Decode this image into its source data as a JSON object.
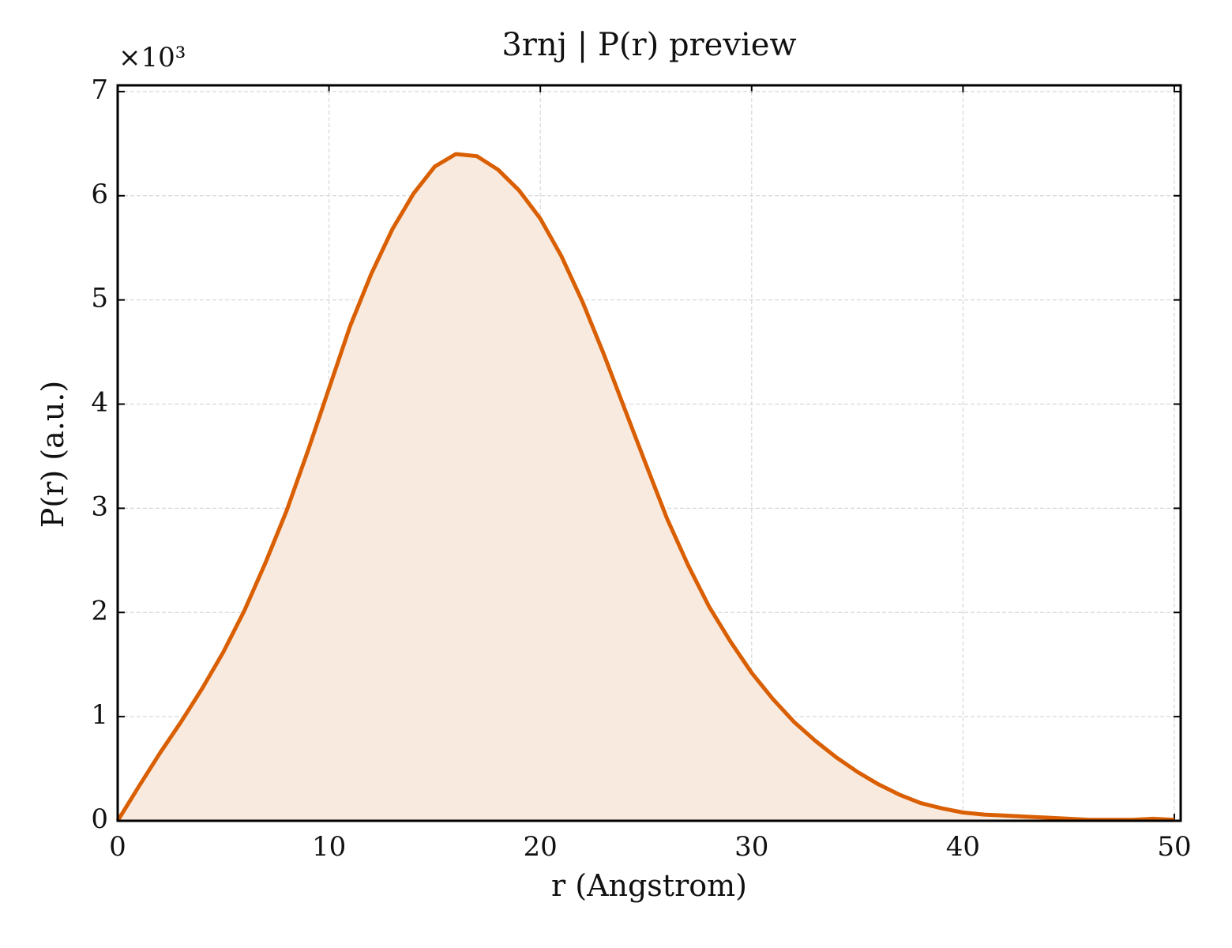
{
  "chart_data": {
    "type": "area_line",
    "title": "3rnj | P(r) preview",
    "x_label": "r (Angstrom)",
    "y_label": "P(r) (a.u.)",
    "y_offset_label": "×10³",
    "x": [
      0,
      1,
      2,
      3,
      4,
      5,
      6,
      7,
      8,
      9,
      10,
      11,
      12,
      13,
      14,
      15,
      16,
      17,
      18,
      19,
      20,
      21,
      22,
      23,
      24,
      25,
      26,
      27,
      28,
      29,
      30,
      31,
      32,
      33,
      34,
      35,
      36,
      37,
      38,
      39,
      40,
      41,
      42,
      43,
      44,
      45,
      46,
      47,
      48,
      49,
      50
    ],
    "series": [
      {
        "name": "P(r)",
        "color": "#d95f02",
        "fill": "#f9eadf",
        "values": [
          0,
          0.33,
          0.65,
          0.95,
          1.27,
          1.62,
          2.02,
          2.48,
          2.98,
          3.55,
          4.15,
          4.75,
          5.25,
          5.68,
          6.02,
          6.28,
          6.4,
          6.38,
          6.25,
          6.05,
          5.78,
          5.42,
          4.98,
          4.48,
          3.95,
          3.42,
          2.9,
          2.45,
          2.05,
          1.72,
          1.42,
          1.17,
          0.95,
          0.77,
          0.61,
          0.47,
          0.35,
          0.25,
          0.17,
          0.12,
          0.08,
          0.06,
          0.05,
          0.04,
          0.03,
          0.02,
          0.01,
          0.01,
          0.01,
          0.02,
          0.01
        ]
      }
    ],
    "xlim": [
      0,
      50.3
    ],
    "ylim": [
      0,
      7.06
    ],
    "xticks": [
      0,
      10,
      20,
      30,
      40,
      50
    ],
    "yticks": [
      0,
      1,
      2,
      3,
      4,
      5,
      6,
      7
    ],
    "grid": true
  }
}
